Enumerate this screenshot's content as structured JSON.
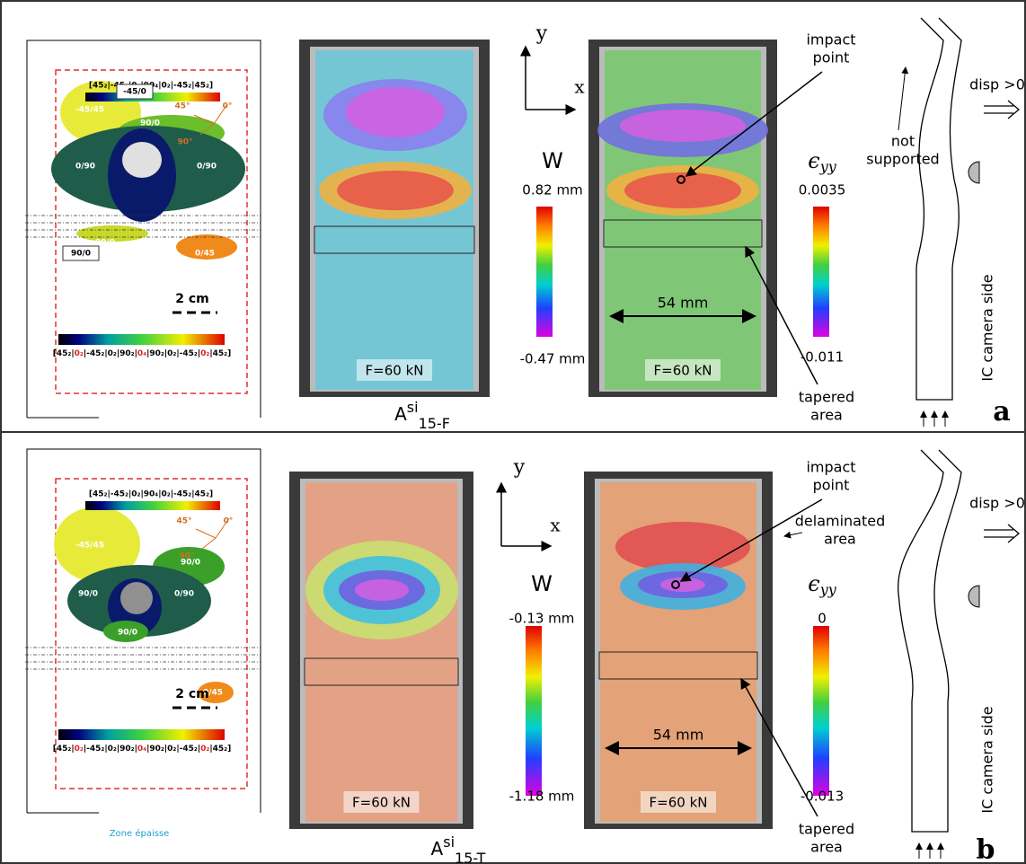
{
  "panels": [
    {
      "label": "a",
      "caption": {
        "base": "A",
        "sup": "si",
        "sub": "15-F"
      },
      "layup_top": "[45₂|-45₂|0₂|90₄|0₂|-45₂|45₂]",
      "layup_bottom": [
        "[45₂|",
        "0₂",
        "|-45₂|0₂|90₂|",
        "0₄",
        "|90₂|0₂|-45₂|",
        "0₂",
        "|45₂]"
      ],
      "regions": [
        "-45/45",
        "-45/0",
        "90/0",
        "0/90",
        "0/90",
        "90/0",
        "90/0",
        "90/0",
        "0/45"
      ],
      "angles": [
        "45°",
        "0°",
        "90°"
      ],
      "scale": "2 cm",
      "loads": [
        "F=60 kN",
        "F=60 kN"
      ],
      "axes": [
        "x",
        "y"
      ],
      "w": {
        "symbol": "W",
        "top": "0.82 mm",
        "bottom": "-0.47 mm"
      },
      "eps": {
        "symbol": "ϵ",
        "sub": "yy",
        "top": "0.0035",
        "bottom": "-0.011"
      },
      "impact": [
        "impact",
        "point"
      ],
      "width": "54 mm",
      "tapered": [
        "tapered",
        "area"
      ],
      "support": [
        "not",
        "supported"
      ],
      "disp": "disp >0",
      "camera": "IC camera side"
    },
    {
      "label": "b",
      "caption": {
        "base": "A",
        "sup": "si",
        "sub": "15-T"
      },
      "layup_top": "[45₂|-45₂|0₂|90₄|0₂|-45₂|45₂]",
      "layup_bottom": [
        "[45₂|",
        "0₂",
        "|-45₂|0₂|90₂|",
        "0₄",
        "|90₂|0₂|-45₂|",
        "0₂",
        "|45₂]"
      ],
      "regions": [
        "-45/45",
        "90/0",
        "90/0",
        "0/90",
        "90/0",
        "0/45"
      ],
      "angles": [
        "45°",
        "0°",
        "90°"
      ],
      "scale": "2 cm",
      "footer": "Zone épaisse",
      "loads": [
        "F=60 kN",
        "F=60 kN"
      ],
      "axes": [
        "x",
        "y"
      ],
      "w": {
        "symbol": "W",
        "top": "-0.13 mm",
        "bottom": "-1.18 mm"
      },
      "eps": {
        "symbol": "ϵ",
        "sub": "yy",
        "top": "0",
        "bottom": "-0.013"
      },
      "impact": [
        "impact",
        "point"
      ],
      "delaminated": [
        "delaminated",
        "area"
      ],
      "width": "54 mm",
      "tapered": [
        "tapered",
        "area"
      ],
      "disp": "disp >0",
      "camera": "IC camera side"
    }
  ]
}
